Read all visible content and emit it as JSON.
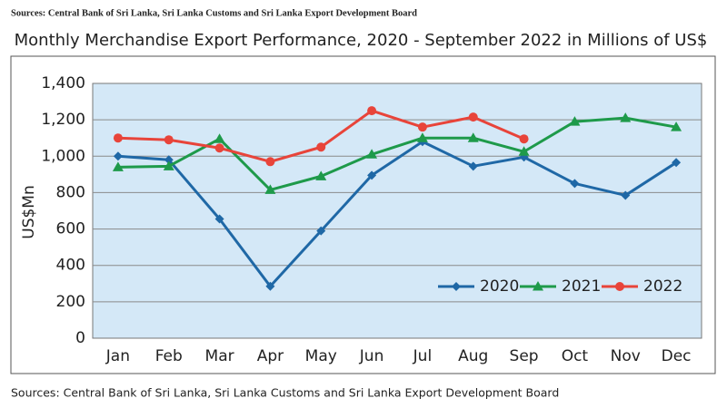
{
  "chart_data": {
    "type": "line",
    "source_top": "Sources: Central Bank of Sri Lanka, Sri Lanka Customs and Sri Lanka Export Development Board",
    "title": "Monthly Merchandise Export Performance, 2020 - September 2022 in Millions of US$",
    "y_label": "US$Mn",
    "source": "Sources: Central Bank of Sri Lanka, Sri Lanka Customs and Sri Lanka Export Development Board",
    "categories": [
      "Jan",
      "Feb",
      "Mar",
      "Apr",
      "May",
      "Jun",
      "Jul",
      "Aug",
      "Sep",
      "Oct",
      "Nov",
      "Dec"
    ],
    "series": [
      {
        "name": "2020",
        "color": "#1f68a6",
        "marker": "diamond",
        "values": [
          1000,
          980,
          655,
          285,
          590,
          895,
          1080,
          945,
          995,
          850,
          785,
          965
        ]
      },
      {
        "name": "2021",
        "color": "#1e9a4a",
        "marker": "triangle",
        "values": [
          940,
          945,
          1095,
          815,
          890,
          1010,
          1100,
          1100,
          1025,
          1190,
          1210,
          1160
        ]
      },
      {
        "name": "2022",
        "color": "#e8443a",
        "marker": "circle",
        "values": [
          1100,
          1090,
          1045,
          970,
          1050,
          1250,
          1160,
          1215,
          1095,
          null,
          null,
          null
        ]
      }
    ],
    "ylim": [
      0,
      1400
    ],
    "yticks": [
      0,
      200,
      400,
      600,
      800,
      {
        "value": 1000,
        "label": "1,000"
      },
      {
        "value": 1200,
        "label": "1,200"
      },
      {
        "value": 1400,
        "label": "1,400"
      }
    ],
    "grid": true,
    "legend": "lower right"
  }
}
